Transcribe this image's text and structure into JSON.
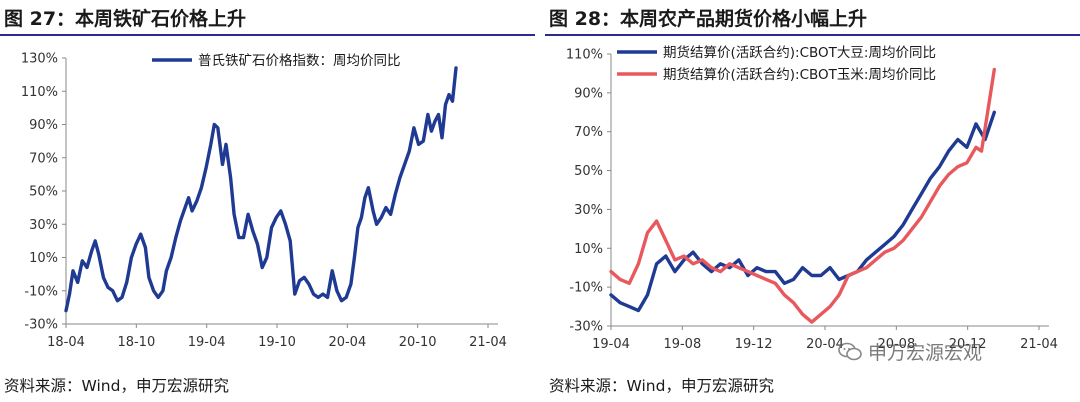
{
  "colors": {
    "blue": "#1f3a93",
    "red": "#e8595d",
    "rule": "#2b2b8c"
  },
  "watermark": {
    "text": "申万宏源宏观",
    "icon": "wechat-icon"
  },
  "chart_data": [
    {
      "type": "line",
      "title": "图 27：本周铁矿石价格上升",
      "source": "资料来源：Wind，申万宏源研究",
      "x_ticks": [
        "18-04",
        "18-10",
        "19-04",
        "19-10",
        "20-04",
        "20-10",
        "21-04"
      ],
      "x_range": [
        0,
        37
      ],
      "y_ticks": [
        "130%",
        "110%",
        "90%",
        "70%",
        "50%",
        "30%",
        "10%",
        "-10%",
        "-30%"
      ],
      "ylim": [
        -30,
        130
      ],
      "grid": false,
      "legend_position": "top",
      "series": [
        {
          "name": "普氏铁矿石价格指数：周均价同比",
          "color": "#1f3a93",
          "points": [
            [
              0,
              -22
            ],
            [
              0.3,
              -12
            ],
            [
              0.6,
              2
            ],
            [
              1,
              -5
            ],
            [
              1.4,
              8
            ],
            [
              1.8,
              4
            ],
            [
              2.2,
              14
            ],
            [
              2.5,
              20
            ],
            [
              2.8,
              12
            ],
            [
              3.2,
              -2
            ],
            [
              3.6,
              -8
            ],
            [
              4,
              -10
            ],
            [
              4.4,
              -16
            ],
            [
              4.8,
              -14
            ],
            [
              5.2,
              -5
            ],
            [
              5.6,
              10
            ],
            [
              6,
              18
            ],
            [
              6.4,
              24
            ],
            [
              6.8,
              16
            ],
            [
              7.1,
              -2
            ],
            [
              7.5,
              -10
            ],
            [
              7.9,
              -14
            ],
            [
              8.3,
              -10
            ],
            [
              8.6,
              2
            ],
            [
              9,
              10
            ],
            [
              9.4,
              22
            ],
            [
              9.8,
              32
            ],
            [
              10.2,
              40
            ],
            [
              10.5,
              46
            ],
            [
              10.8,
              38
            ],
            [
              11.2,
              44
            ],
            [
              11.6,
              52
            ],
            [
              12,
              64
            ],
            [
              12.4,
              78
            ],
            [
              12.7,
              90
            ],
            [
              13,
              88
            ],
            [
              13.4,
              66
            ],
            [
              13.7,
              78
            ],
            [
              14.1,
              58
            ],
            [
              14.4,
              36
            ],
            [
              14.8,
              22
            ],
            [
              15.2,
              22
            ],
            [
              15.6,
              36
            ],
            [
              16,
              26
            ],
            [
              16.4,
              18
            ],
            [
              16.8,
              4
            ],
            [
              17.2,
              10
            ],
            [
              17.6,
              28
            ],
            [
              18,
              34
            ],
            [
              18.4,
              38
            ],
            [
              18.8,
              30
            ],
            [
              19.2,
              20
            ],
            [
              19.6,
              -12
            ],
            [
              20,
              -4
            ],
            [
              20.4,
              -2
            ],
            [
              20.8,
              -6
            ],
            [
              21.2,
              -12
            ],
            [
              21.6,
              -14
            ],
            [
              22,
              -12
            ],
            [
              22.4,
              -14
            ],
            [
              22.8,
              2
            ],
            [
              23.2,
              -10
            ],
            [
              23.6,
              -16
            ],
            [
              24,
              -14
            ],
            [
              24.4,
              -6
            ],
            [
              24.7,
              10
            ],
            [
              25,
              28
            ],
            [
              25.3,
              34
            ],
            [
              25.6,
              46
            ],
            [
              25.9,
              52
            ],
            [
              26.3,
              38
            ],
            [
              26.6,
              30
            ],
            [
              27,
              34
            ],
            [
              27.4,
              40
            ],
            [
              27.8,
              36
            ],
            [
              28.2,
              48
            ],
            [
              28.6,
              58
            ],
            [
              29,
              66
            ],
            [
              29.4,
              74
            ],
            [
              29.8,
              88
            ],
            [
              30.2,
              78
            ],
            [
              30.6,
              80
            ],
            [
              31,
              96
            ],
            [
              31.3,
              86
            ],
            [
              31.6,
              92
            ],
            [
              31.9,
              96
            ],
            [
              32.2,
              82
            ],
            [
              32.5,
              102
            ],
            [
              32.8,
              108
            ],
            [
              33.1,
              104
            ],
            [
              33.4,
              124
            ]
          ]
        }
      ]
    },
    {
      "type": "line",
      "title": "图 28：本周农产品期货价格小幅上升",
      "source": "资料来源：Wind，申万宏源研究",
      "x_ticks": [
        "19-04",
        "19-08",
        "19-12",
        "20-04",
        "20-08",
        "20-12",
        "21-04"
      ],
      "x_range": [
        0,
        24
      ],
      "y_ticks": [
        "110%",
        "90%",
        "70%",
        "50%",
        "30%",
        "10%",
        "-10%",
        "-30%"
      ],
      "ylim": [
        -30,
        110
      ],
      "grid": false,
      "legend_position": "top-left",
      "series": [
        {
          "name": "期货结算价(活跃合约):CBOT大豆:周均价同比",
          "color": "#1f3a93",
          "points": [
            [
              0,
              -14
            ],
            [
              0.5,
              -18
            ],
            [
              1,
              -20
            ],
            [
              1.5,
              -22
            ],
            [
              2,
              -14
            ],
            [
              2.5,
              2
            ],
            [
              3,
              6
            ],
            [
              3.5,
              -2
            ],
            [
              4,
              4
            ],
            [
              4.5,
              8
            ],
            [
              5,
              2
            ],
            [
              5.5,
              -2
            ],
            [
              6,
              2
            ],
            [
              6.5,
              0
            ],
            [
              7,
              4
            ],
            [
              7.5,
              -4
            ],
            [
              8,
              0
            ],
            [
              8.5,
              -2
            ],
            [
              9,
              -2
            ],
            [
              9.5,
              -8
            ],
            [
              10,
              -6
            ],
            [
              10.5,
              0
            ],
            [
              11,
              -4
            ],
            [
              11.5,
              -4
            ],
            [
              12,
              0
            ],
            [
              12.5,
              -6
            ],
            [
              13,
              -4
            ],
            [
              13.5,
              -2
            ],
            [
              14,
              4
            ],
            [
              14.5,
              8
            ],
            [
              15,
              12
            ],
            [
              15.5,
              16
            ],
            [
              16,
              22
            ],
            [
              16.5,
              30
            ],
            [
              17,
              38
            ],
            [
              17.5,
              46
            ],
            [
              18,
              52
            ],
            [
              18.5,
              60
            ],
            [
              19,
              66
            ],
            [
              19.5,
              62
            ],
            [
              20,
              74
            ],
            [
              20.5,
              66
            ],
            [
              21,
              80
            ]
          ]
        },
        {
          "name": "期货结算价(活跃合约):CBOT玉米:周均价同比",
          "color": "#e8595d",
          "points": [
            [
              0,
              -2
            ],
            [
              0.5,
              -6
            ],
            [
              1,
              -8
            ],
            [
              1.5,
              2
            ],
            [
              2,
              18
            ],
            [
              2.5,
              24
            ],
            [
              3,
              14
            ],
            [
              3.5,
              4
            ],
            [
              4,
              6
            ],
            [
              4.5,
              2
            ],
            [
              5,
              4
            ],
            [
              5.5,
              0
            ],
            [
              6,
              -2
            ],
            [
              6.5,
              2
            ],
            [
              7,
              0
            ],
            [
              7.5,
              -2
            ],
            [
              8,
              -4
            ],
            [
              8.5,
              -6
            ],
            [
              9,
              -8
            ],
            [
              9.5,
              -14
            ],
            [
              10,
              -18
            ],
            [
              10.5,
              -24
            ],
            [
              11,
              -28
            ],
            [
              11.5,
              -24
            ],
            [
              12,
              -20
            ],
            [
              12.5,
              -14
            ],
            [
              13,
              -4
            ],
            [
              13.5,
              -2
            ],
            [
              14,
              0
            ],
            [
              14.5,
              4
            ],
            [
              15,
              8
            ],
            [
              15.5,
              10
            ],
            [
              16,
              14
            ],
            [
              16.5,
              20
            ],
            [
              17,
              26
            ],
            [
              17.5,
              34
            ],
            [
              18,
              42
            ],
            [
              18.5,
              48
            ],
            [
              19,
              52
            ],
            [
              19.5,
              54
            ],
            [
              20,
              62
            ],
            [
              20.3,
              60
            ],
            [
              20.6,
              78
            ],
            [
              21,
              102
            ]
          ]
        }
      ]
    }
  ]
}
